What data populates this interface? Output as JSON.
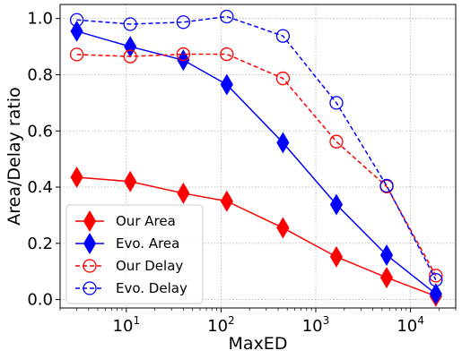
{
  "chart_data": {
    "type": "line",
    "title": "",
    "xlabel": "MaxED",
    "ylabel": "Area/Delay ratio",
    "xscale": "log",
    "xlim": [
      2.0,
      30000
    ],
    "ylim": [
      -0.03,
      1.05
    ],
    "x_ticks": [
      {
        "value": 10,
        "base": "10",
        "exp": "1"
      },
      {
        "value": 100,
        "base": "10",
        "exp": "2"
      },
      {
        "value": 1000,
        "base": "10",
        "exp": "3"
      },
      {
        "value": 10000,
        "base": "10",
        "exp": "4"
      }
    ],
    "y_ticks": [
      "0.0",
      "0.2",
      "0.4",
      "0.6",
      "0.8",
      "1.0"
    ],
    "grid": true,
    "legend_position": "lower-left",
    "x": [
      3,
      11,
      40,
      115,
      450,
      1650,
      5600,
      18500
    ],
    "series": [
      {
        "name": "Our Area",
        "color": "#ff0000",
        "linestyle": "solid",
        "marker": "thin-diamond-filled",
        "values": [
          0.435,
          0.42,
          0.378,
          0.35,
          0.255,
          0.152,
          0.078,
          0.012
        ]
      },
      {
        "name": "Evo. Area",
        "color": "#0000ff",
        "linestyle": "solid",
        "marker": "thin-diamond-filled",
        "values": [
          0.955,
          0.9,
          0.852,
          0.765,
          0.558,
          0.338,
          0.158,
          0.02
        ]
      },
      {
        "name": "Our Delay",
        "color": "#ff0000",
        "linestyle": "dashed",
        "marker": "circle-open",
        "values": [
          0.872,
          0.865,
          0.873,
          0.873,
          0.787,
          0.562,
          0.402,
          0.085
        ]
      },
      {
        "name": "Evo. Delay",
        "color": "#0000ff",
        "linestyle": "dashed",
        "marker": "circle-open",
        "values": [
          0.995,
          0.98,
          0.987,
          1.007,
          0.938,
          0.7,
          0.405,
          0.07
        ]
      }
    ]
  }
}
